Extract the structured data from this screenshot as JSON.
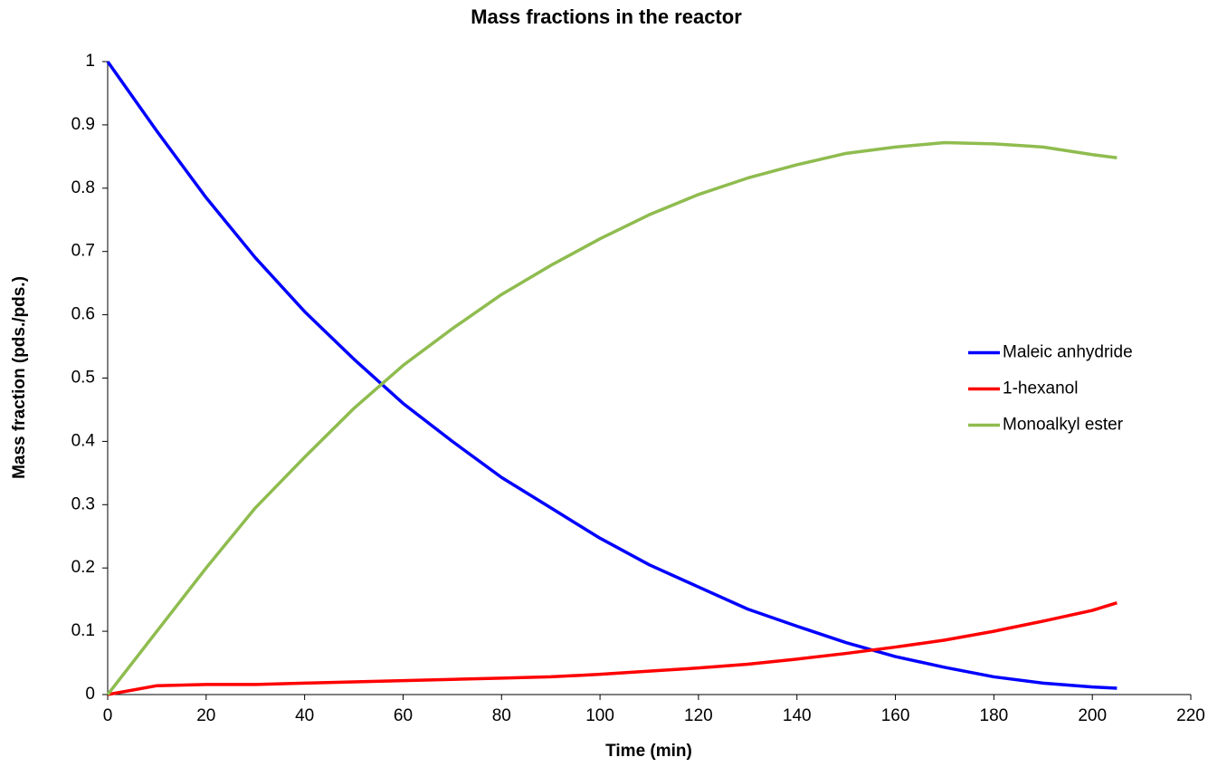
{
  "chart_data": {
    "type": "line",
    "title": "Mass fractions in the reactor",
    "xlabel": "Time (min)",
    "ylabel": "Mass fraction (pds./pds.)",
    "x": [
      0,
      10,
      20,
      30,
      40,
      50,
      60,
      70,
      80,
      90,
      100,
      110,
      120,
      130,
      140,
      150,
      160,
      170,
      180,
      190,
      200,
      205
    ],
    "series": [
      {
        "name": "Maleic anhydride",
        "color": "#0000ff",
        "values": [
          1.0,
          0.89,
          0.785,
          0.69,
          0.605,
          0.53,
          0.46,
          0.4,
          0.343,
          0.295,
          0.247,
          0.205,
          0.17,
          0.135,
          0.108,
          0.082,
          0.06,
          0.043,
          0.028,
          0.018,
          0.012,
          0.01
        ]
      },
      {
        "name": "1-hexanol",
        "color": "#ff0000",
        "values": [
          0,
          0.014,
          0.016,
          0.016,
          0.018,
          0.02,
          0.022,
          0.024,
          0.026,
          0.028,
          0.032,
          0.037,
          0.042,
          0.048,
          0.056,
          0.065,
          0.075,
          0.086,
          0.1,
          0.116,
          0.133,
          0.145
        ]
      },
      {
        "name": "Monoalkyl ester",
        "color": "#8fbc4f",
        "values": [
          0,
          0.1,
          0.2,
          0.295,
          0.375,
          0.452,
          0.52,
          0.578,
          0.632,
          0.678,
          0.72,
          0.758,
          0.79,
          0.816,
          0.837,
          0.855,
          0.865,
          0.872,
          0.87,
          0.865,
          0.853,
          0.848
        ]
      }
    ],
    "xlim": [
      0,
      220
    ],
    "xticks": [
      0,
      20,
      40,
      60,
      80,
      100,
      120,
      140,
      160,
      180,
      200,
      220
    ],
    "ylim": [
      0,
      1
    ],
    "yticks": [
      0,
      0.1,
      0.2,
      0.3,
      0.4,
      0.5,
      0.6,
      0.7,
      0.8,
      0.9,
      1
    ],
    "grid": false,
    "legend": "right"
  }
}
